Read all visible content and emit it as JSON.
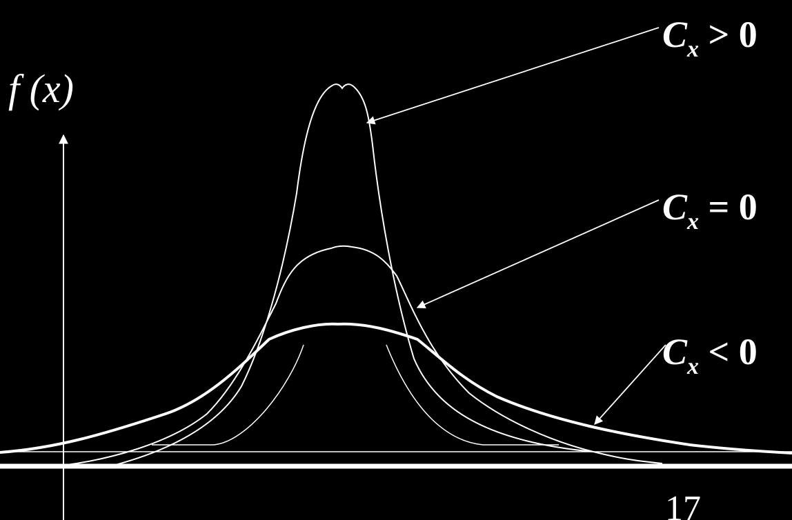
{
  "y_axis_label": "f (x)",
  "page_number": "17",
  "colors": {
    "background": "#000000",
    "foreground": "#ffffff"
  },
  "curves": [
    {
      "label": {
        "letter": "C",
        "sub": "x",
        "rest": " > 0"
      },
      "weight": "thin"
    },
    {
      "label": {
        "letter": "C",
        "sub": "x",
        "rest": " = 0"
      },
      "weight": "thin"
    },
    {
      "label": {
        "letter": "C",
        "sub": "x",
        "rest": " < 0"
      },
      "weight": "thick"
    }
  ]
}
